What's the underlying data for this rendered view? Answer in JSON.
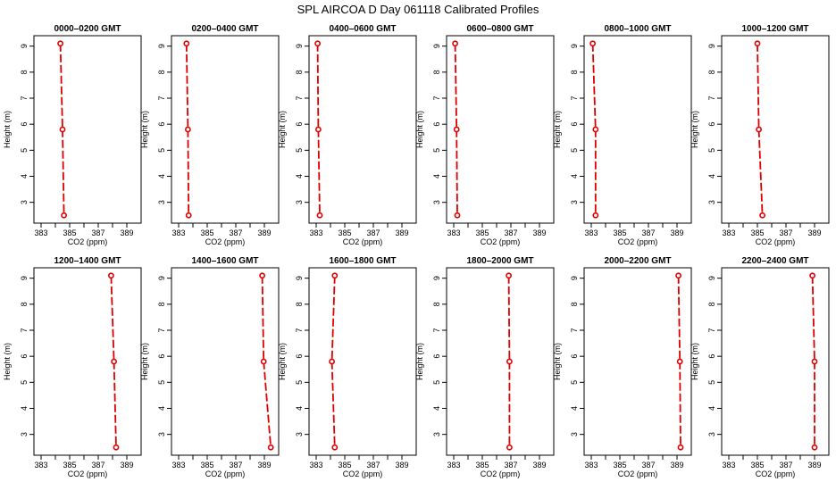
{
  "title": "SPL AIRCOA D  Day 061118  Calibrated Profiles",
  "chart_data": {
    "type": "line",
    "xlabel": "CO2 (ppm)",
    "ylabel": "Height (m)",
    "xlim": [
      382.5,
      390.0
    ],
    "ylim": [
      2.2,
      9.4
    ],
    "xticks": [
      383,
      384,
      385,
      386,
      387,
      388,
      389
    ],
    "xtick_labels": [
      "383",
      "",
      "385",
      "",
      "387",
      "",
      "389"
    ],
    "yticks": [
      3,
      4,
      5,
      6,
      7,
      8,
      9
    ],
    "heights": [
      9.1,
      5.8,
      2.5
    ],
    "line_color": "#dd0000",
    "grid": false,
    "panels": [
      {
        "title": "0000–0200 GMT",
        "co2": [
          384.35,
          384.5,
          384.6
        ]
      },
      {
        "title": "0200–0400 GMT",
        "co2": [
          383.55,
          383.65,
          383.7
        ]
      },
      {
        "title": "0400–0600 GMT",
        "co2": [
          383.1,
          383.15,
          383.25
        ]
      },
      {
        "title": "0600–0800 GMT",
        "co2": [
          383.1,
          383.2,
          383.25
        ]
      },
      {
        "title": "0800–1000 GMT",
        "co2": [
          383.1,
          383.3,
          383.3
        ]
      },
      {
        "title": "1000–1200 GMT",
        "co2": [
          385.0,
          385.1,
          385.35
        ]
      },
      {
        "title": "1200–1400 GMT",
        "co2": [
          387.9,
          388.1,
          388.25
        ]
      },
      {
        "title": "1400–1600 GMT",
        "co2": [
          388.85,
          388.95,
          389.45
        ]
      },
      {
        "title": "1600–1800 GMT",
        "co2": [
          384.3,
          384.1,
          384.3
        ]
      },
      {
        "title": "1800–2000 GMT",
        "co2": [
          386.85,
          386.9,
          386.9
        ]
      },
      {
        "title": "2000–2200 GMT",
        "co2": [
          389.1,
          389.2,
          389.25
        ]
      },
      {
        "title": "2200–2400 GMT",
        "co2": [
          388.85,
          389.0,
          389.0
        ]
      }
    ]
  }
}
